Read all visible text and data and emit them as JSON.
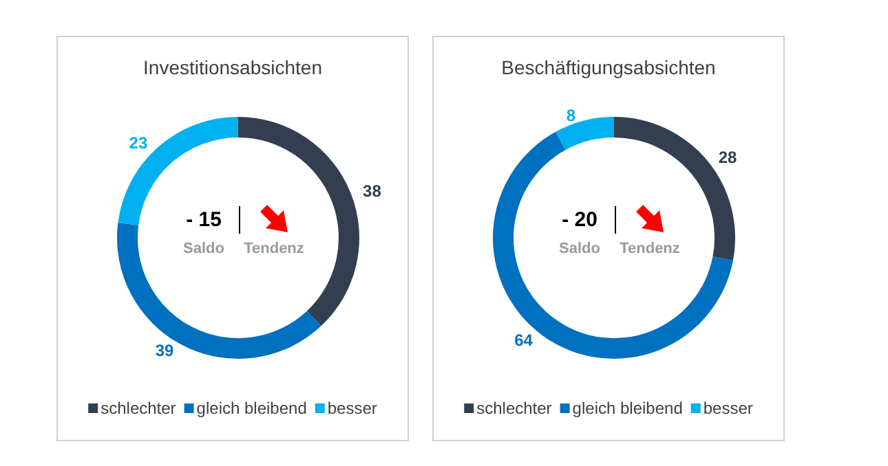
{
  "chart_data": [
    {
      "type": "donut",
      "title": "Investitionsabsichten",
      "categories": [
        "schlechter",
        "gleich bleibend",
        "besser"
      ],
      "values": [
        38,
        39,
        23
      ],
      "colors": [
        "#333f50",
        "#0070c0",
        "#00b0f0"
      ],
      "legend": "bottom",
      "data_labels": true,
      "annotations": [
        "- 15",
        "Saldo",
        "Tendenz"
      ]
    },
    {
      "type": "donut",
      "title": "Beschäftigungsabsichten",
      "categories": [
        "schlechter",
        "gleich bleibend",
        "besser"
      ],
      "values": [
        28,
        64,
        8
      ],
      "colors": [
        "#333f50",
        "#0070c0",
        "#00b0f0"
      ],
      "legend": "bottom",
      "data_labels": true,
      "annotations": [
        "- 20",
        "Saldo",
        "Tendenz"
      ]
    }
  ]
}
